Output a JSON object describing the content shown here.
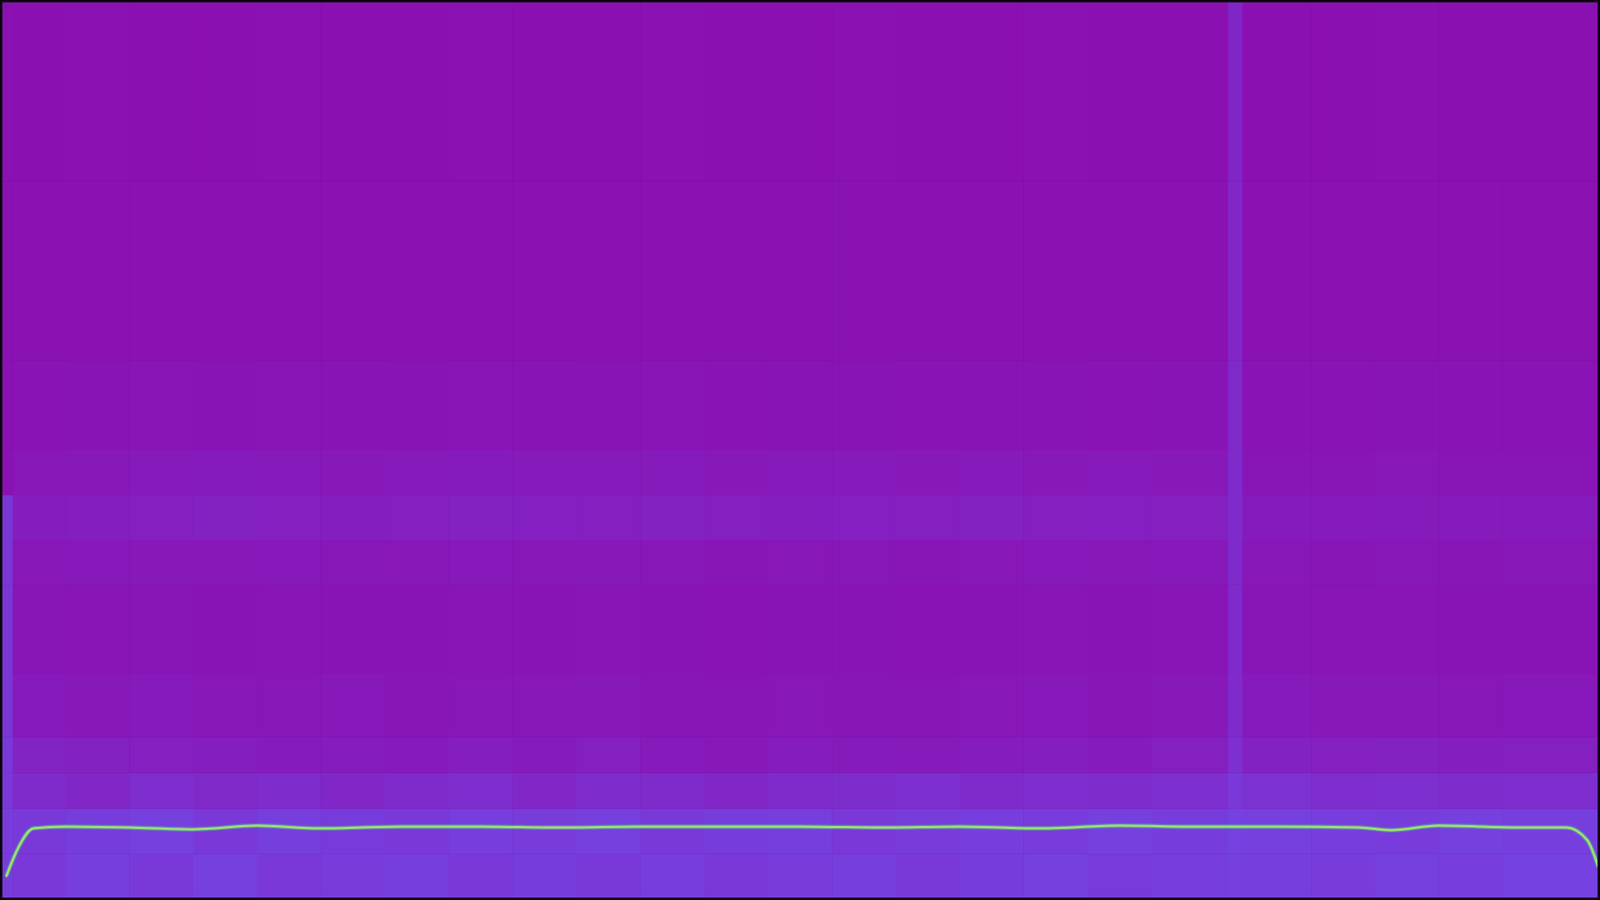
{
  "chart_data": {
    "type": "spectrogram",
    "tick_labels": false,
    "grid": false,
    "xlim": [
      0,
      100
    ],
    "ylim": [
      0,
      100
    ],
    "color_range": [
      0,
      1
    ],
    "x_edges": [
      0,
      0.7,
      4,
      8,
      12,
      16,
      20,
      24,
      28,
      32,
      36,
      40,
      44,
      48,
      52,
      56,
      60,
      64,
      68,
      72,
      76.8,
      77.7,
      82,
      86,
      90,
      94,
      100
    ],
    "y_edges": [
      0,
      5,
      10,
      14,
      18,
      25,
      35,
      40,
      45,
      50,
      60,
      80,
      100
    ],
    "cells": [
      [
        0.55,
        0.5,
        0.58,
        0.52,
        0.6,
        0.5,
        0.55,
        0.58,
        0.5,
        0.56,
        0.52,
        0.57,
        0.5,
        0.55,
        0.58,
        0.52,
        0.56,
        0.6,
        0.53,
        0.57,
        0.6,
        0.58,
        0.55,
        0.6,
        0.57,
        0.62
      ],
      [
        0.55,
        0.52,
        0.56,
        0.6,
        0.5,
        0.58,
        0.54,
        0.5,
        0.57,
        0.55,
        0.6,
        0.52,
        0.56,
        0.58,
        0.5,
        0.55,
        0.57,
        0.54,
        0.6,
        0.56,
        0.62,
        0.6,
        0.57,
        0.55,
        0.6,
        0.58
      ],
      [
        0.5,
        0.35,
        0.3,
        0.38,
        0.32,
        0.36,
        0.3,
        0.34,
        0.38,
        0.3,
        0.36,
        0.33,
        0.3,
        0.35,
        0.37,
        0.4,
        0.34,
        0.38,
        0.36,
        0.4,
        0.5,
        0.42,
        0.38,
        0.4,
        0.36,
        0.38
      ],
      [
        0.5,
        0.25,
        0.22,
        0.2,
        0.18,
        0.15,
        0.16,
        0.14,
        0.18,
        0.15,
        0.2,
        0.14,
        0.12,
        0.16,
        0.15,
        0.13,
        0.16,
        0.18,
        0.15,
        0.2,
        0.4,
        0.24,
        0.2,
        0.22,
        0.18,
        0.2
      ],
      [
        0.48,
        0.14,
        0.12,
        0.13,
        0.1,
        0.1,
        0.11,
        0.09,
        0.1,
        0.1,
        0.12,
        0.09,
        0.08,
        0.1,
        0.09,
        0.08,
        0.1,
        0.11,
        0.09,
        0.12,
        0.35,
        0.13,
        0.12,
        0.12,
        0.1,
        0.11
      ],
      [
        0.48,
        0.08,
        0.07,
        0.08,
        0.06,
        0.07,
        0.06,
        0.06,
        0.07,
        0.06,
        0.07,
        0.06,
        0.05,
        0.06,
        0.06,
        0.05,
        0.06,
        0.07,
        0.06,
        0.07,
        0.33,
        0.08,
        0.07,
        0.07,
        0.06,
        0.06
      ],
      [
        0.48,
        0.1,
        0.11,
        0.12,
        0.1,
        0.11,
        0.1,
        0.1,
        0.11,
        0.1,
        0.12,
        0.1,
        0.09,
        0.1,
        0.1,
        0.09,
        0.1,
        0.11,
        0.1,
        0.11,
        0.33,
        0.1,
        0.09,
        0.1,
        0.09,
        0.1
      ],
      [
        0.48,
        0.16,
        0.18,
        0.2,
        0.22,
        0.2,
        0.18,
        0.2,
        0.22,
        0.21,
        0.2,
        0.22,
        0.2,
        0.19,
        0.21,
        0.2,
        0.22,
        0.2,
        0.21,
        0.2,
        0.35,
        0.15,
        0.14,
        0.15,
        0.13,
        0.14
      ],
      [
        0.02,
        0.1,
        0.12,
        0.14,
        0.15,
        0.13,
        0.12,
        0.14,
        0.15,
        0.13,
        0.14,
        0.15,
        0.12,
        0.13,
        0.14,
        0.12,
        0.13,
        0.12,
        0.13,
        0.12,
        0.33,
        0.09,
        0.08,
        0.1,
        0.08,
        0.09
      ],
      [
        0.02,
        0.05,
        0.06,
        0.07,
        0.06,
        0.07,
        0.06,
        0.06,
        0.07,
        0.06,
        0.06,
        0.07,
        0.05,
        0.06,
        0.06,
        0.05,
        0.06,
        0.06,
        0.05,
        0.06,
        0.32,
        0.05,
        0.05,
        0.06,
        0.05,
        0.05
      ],
      [
        0.02,
        0.03,
        0.04,
        0.03,
        0.04,
        0.03,
        0.03,
        0.04,
        0.03,
        0.03,
        0.04,
        0.03,
        0.03,
        0.03,
        0.04,
        0.03,
        0.03,
        0.04,
        0.03,
        0.03,
        0.3,
        0.03,
        0.03,
        0.03,
        0.03,
        0.03
      ],
      [
        0.02,
        0.01,
        0.02,
        0.01,
        0.01,
        0.02,
        0.01,
        0.01,
        0.02,
        0.01,
        0.01,
        0.02,
        0.01,
        0.01,
        0.02,
        0.01,
        0.01,
        0.02,
        0.01,
        0.01,
        0.28,
        0.01,
        0.01,
        0.02,
        0.01,
        0.01
      ]
    ],
    "series": [
      {
        "type": "line",
        "color": "#9ae070",
        "x": [
          0.3,
          1,
          2,
          4,
          8,
          12,
          16,
          20,
          25,
          30,
          35,
          40,
          45,
          50,
          55,
          60,
          65,
          70,
          75,
          80,
          85,
          87,
          90,
          95,
          98,
          99.3,
          100
        ],
        "values": [
          2.5,
          5.5,
          7.8,
          8.0,
          7.9,
          7.7,
          8.1,
          7.8,
          8.0,
          8.0,
          7.9,
          8.0,
          8.0,
          8.0,
          7.9,
          8.0,
          7.8,
          8.1,
          8.0,
          8.0,
          7.9,
          7.6,
          8.1,
          7.9,
          7.9,
          6.5,
          3.5
        ]
      }
    ]
  }
}
